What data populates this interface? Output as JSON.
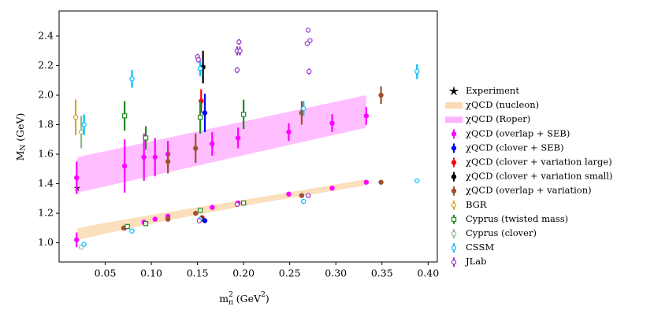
{
  "chart_data": {
    "type": "errorbar-scatter",
    "xlabel": [
      "m",
      "π",
      "2",
      " (GeV",
      "2",
      ")"
    ],
    "ylabel": [
      "M",
      "N",
      " (GeV)"
    ],
    "xlim": [
      0.0,
      0.41
    ],
    "ylim": [
      0.87,
      2.57
    ],
    "xticks": [
      {
        "value": 0.05,
        "label": "0.05"
      },
      {
        "value": 0.1,
        "label": "0.10"
      },
      {
        "value": 0.15,
        "label": "0.15"
      },
      {
        "value": 0.2,
        "label": "0.20"
      },
      {
        "value": 0.25,
        "label": "0.25"
      },
      {
        "value": 0.3,
        "label": "0.30"
      },
      {
        "value": 0.35,
        "label": "0.35"
      },
      {
        "value": 0.4,
        "label": "0.40"
      }
    ],
    "yticks": [
      {
        "value": 1.0,
        "label": "1.0"
      },
      1.2,
      1.4,
      1.6,
      1.8,
      {
        "value": 2.0,
        "label": "2.0"
      },
      2.2,
      2.4
    ],
    "bands": [
      {
        "name": "χQCD (nucleon)",
        "color": "#fcd9b0",
        "x": [
          0.02,
          0.1,
          0.2,
          0.333
        ],
        "lower": [
          1.02,
          1.13,
          1.25,
          1.39
        ],
        "upper": [
          1.1,
          1.19,
          1.29,
          1.43
        ]
      },
      {
        "name": "χQCD (Roper)",
        "color": "#ffb3ff",
        "x": [
          0.02,
          0.333
        ],
        "lower": [
          1.34,
          1.78
        ],
        "upper": [
          1.58,
          2.0
        ]
      }
    ],
    "series": [
      {
        "name": "Experiment",
        "color": "#000000",
        "marker": "star",
        "filled": true,
        "x": [
          0.0195
        ],
        "values": [
          1.37
        ]
      },
      {
        "name": "χQCD (overlap + SEB)",
        "color": "#ff00ff",
        "marker": "circle",
        "filled": true,
        "x": [
          0.019,
          0.071,
          0.092,
          0.104,
          0.118,
          0.166,
          0.194,
          0.249,
          0.296,
          0.333,
          0.019,
          0.071,
          0.092,
          0.104,
          0.118,
          0.166,
          0.194,
          0.249,
          0.296,
          0.333
        ],
        "values": [
          1.02,
          1.1,
          1.14,
          1.16,
          1.18,
          1.24,
          1.27,
          1.33,
          1.37,
          1.41,
          1.44,
          1.52,
          1.58,
          1.58,
          1.6,
          1.67,
          1.71,
          1.75,
          1.81,
          1.86
        ],
        "errors": [
          0.05,
          0.01,
          0.01,
          0.01,
          0.01,
          0.01,
          0.01,
          0.01,
          0.01,
          0.01,
          0.11,
          0.18,
          0.16,
          0.13,
          0.09,
          0.08,
          0.07,
          0.06,
          0.06,
          0.06
        ]
      },
      {
        "name": "χQCD (clover + SEB)",
        "color": "#0000ff",
        "marker": "circle",
        "filled": true,
        "x": [
          0.158,
          0.158
        ],
        "values": [
          1.88,
          1.15
        ],
        "errors": [
          0.13,
          0.01
        ]
      },
      {
        "name": "χQCD (clover + variation large)",
        "color": "#ff0000",
        "marker": "circle",
        "filled": true,
        "x": [
          0.154,
          0.155
        ],
        "values": [
          1.96,
          1.17
        ],
        "errors": [
          0.08,
          0.01
        ]
      },
      {
        "name": "χQCD (clover + variation small)",
        "color": "#000000",
        "marker": "circle",
        "filled": true,
        "x": [
          0.156,
          0.154
        ],
        "values": [
          2.19,
          1.16
        ],
        "errors": [
          0.11,
          0.01
        ]
      },
      {
        "name": "χQCD (overlap + variation)",
        "color": "#a0522d",
        "marker": "circle",
        "filled": true,
        "x": [
          0.118,
          0.148,
          0.263,
          0.349,
          0.07,
          0.118,
          0.148,
          0.263,
          0.349
        ],
        "values": [
          1.55,
          1.64,
          1.88,
          2.0,
          1.1,
          1.16,
          1.2,
          1.32,
          1.41
        ],
        "errors": [
          0.08,
          0.1,
          0.08,
          0.06,
          0.01,
          0.01,
          0.01,
          0.01,
          0.01
        ]
      },
      {
        "name": "BGR",
        "color": "#daa520",
        "marker": "circle",
        "filled": false,
        "x": [
          0.018
        ],
        "values": [
          1.85
        ],
        "errors": [
          0.12
        ]
      },
      {
        "name": "Cyprus (twisted mass)",
        "color": "#228b22",
        "marker": "square",
        "filled": false,
        "x": [
          0.071,
          0.094,
          0.153,
          0.2,
          0.074,
          0.094,
          0.153,
          0.2
        ],
        "values": [
          1.86,
          1.71,
          1.85,
          1.87,
          1.11,
          1.13,
          1.22,
          1.27
        ],
        "errors": [
          0.1,
          0.08,
          0.11,
          0.1,
          0.01,
          0.01,
          0.01,
          0.01
        ]
      },
      {
        "name": "Cyprus (clover)",
        "color": "#8fbc8f",
        "marker": "circle",
        "filled": false,
        "x": [
          0.024,
          0.024
        ],
        "values": [
          1.75,
          0.97
        ],
        "errors": [
          0.11,
          0.01
        ]
      },
      {
        "name": "CSSM",
        "color": "#00bfff",
        "marker": "circle",
        "filled": false,
        "x": [
          0.027,
          0.079,
          0.153,
          0.265,
          0.388,
          0.027,
          0.079,
          0.153,
          0.265,
          0.388
        ],
        "values": [
          1.8,
          2.11,
          2.18,
          1.91,
          2.16,
          0.99,
          1.08,
          1.16,
          1.28,
          1.42
        ],
        "errors": [
          0.07,
          0.06,
          0.05,
          0.05,
          0.05,
          0.01,
          0.01,
          0.01,
          0.01,
          0.01
        ]
      },
      {
        "name": "JLab",
        "color": "#9932cc",
        "marker": "circle",
        "filled": false,
        "x": [
          0.15,
          0.151,
          0.193,
          0.196,
          0.193,
          0.195,
          0.27,
          0.272,
          0.269,
          0.271,
          0.152,
          0.193,
          0.27
        ],
        "values": [
          2.26,
          2.24,
          2.3,
          2.3,
          2.17,
          2.36,
          2.44,
          2.37,
          2.35,
          2.16,
          1.15,
          1.26,
          1.32
        ],
        "errors": [
          0.02,
          0.02,
          0.03,
          0.03,
          0.02,
          0.02,
          0.01,
          0.01,
          0.01,
          0.02,
          0.01,
          0.01,
          0.01
        ]
      }
    ]
  }
}
